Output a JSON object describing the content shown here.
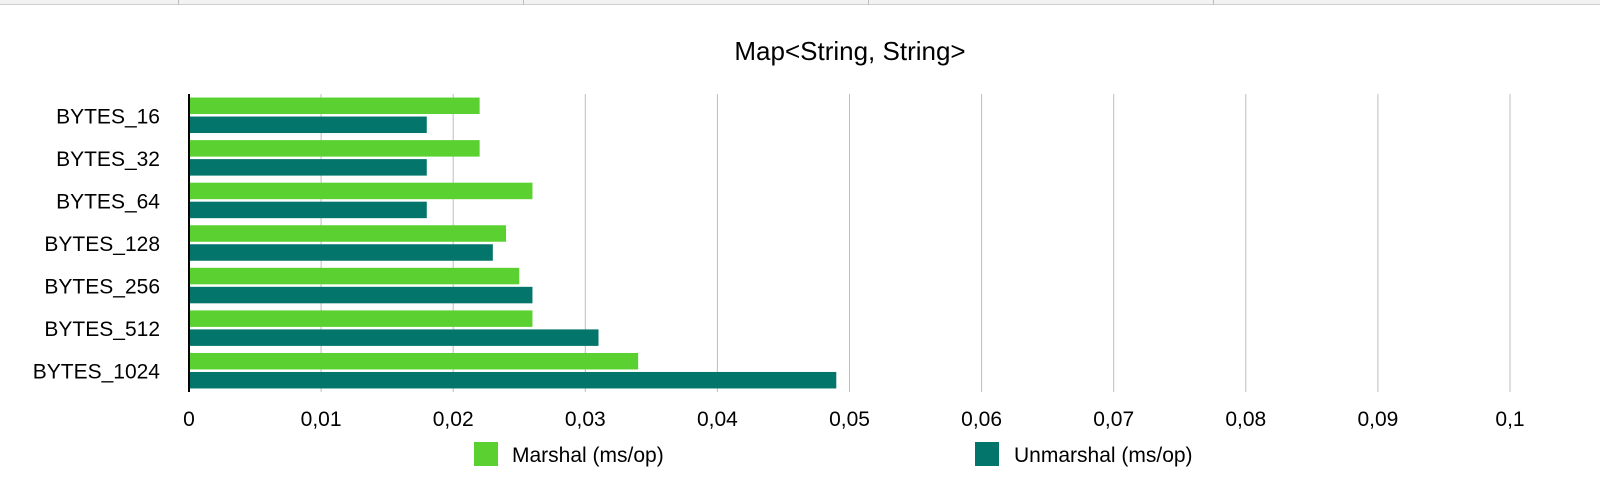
{
  "chart_data": {
    "type": "bar",
    "orientation": "horizontal",
    "title": "Map<String, String>",
    "categories": [
      "BYTES_16",
      "BYTES_32",
      "BYTES_64",
      "BYTES_128",
      "BYTES_256",
      "BYTES_512",
      "BYTES_1024"
    ],
    "series": [
      {
        "name": "Marshal (ms/op)",
        "color": "#5ad130",
        "values": [
          0.022,
          0.022,
          0.026,
          0.024,
          0.025,
          0.026,
          0.034
        ]
      },
      {
        "name": "Unmarshal (ms/op)",
        "color": "#04756a",
        "values": [
          0.018,
          0.018,
          0.018,
          0.023,
          0.026,
          0.031,
          0.049
        ]
      }
    ],
    "xlim": [
      0,
      0.1
    ],
    "x_ticks": [
      0,
      0.01,
      0.02,
      0.03,
      0.04,
      0.05,
      0.06,
      0.07,
      0.08,
      0.09,
      0.1
    ],
    "x_tick_labels": [
      "0",
      "0,01",
      "0,02",
      "0,03",
      "0,04",
      "0,05",
      "0,06",
      "0,07",
      "0,08",
      "0,09",
      "0,1"
    ],
    "grid": "vertical",
    "legend_position": "bottom"
  }
}
